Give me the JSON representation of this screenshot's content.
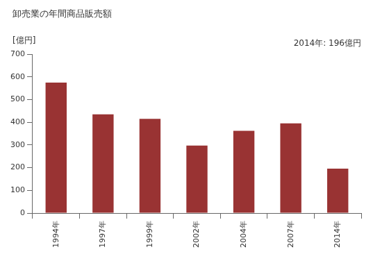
{
  "chart_data": {
    "type": "bar",
    "title": "卸売業の年間商品販売額",
    "y_label": "[億円]",
    "annotations": [
      "2014年: 196億円"
    ],
    "categories": [
      "1994年",
      "1997年",
      "1999年",
      "2002年",
      "2004年",
      "2007年",
      "2014年"
    ],
    "values": [
      575,
      435,
      415,
      297,
      362,
      395,
      196
    ],
    "color": "#993333",
    "ylim": [
      0,
      700
    ],
    "yticks": [
      0,
      100,
      200,
      300,
      400,
      500,
      600,
      700
    ],
    "grid": false
  }
}
